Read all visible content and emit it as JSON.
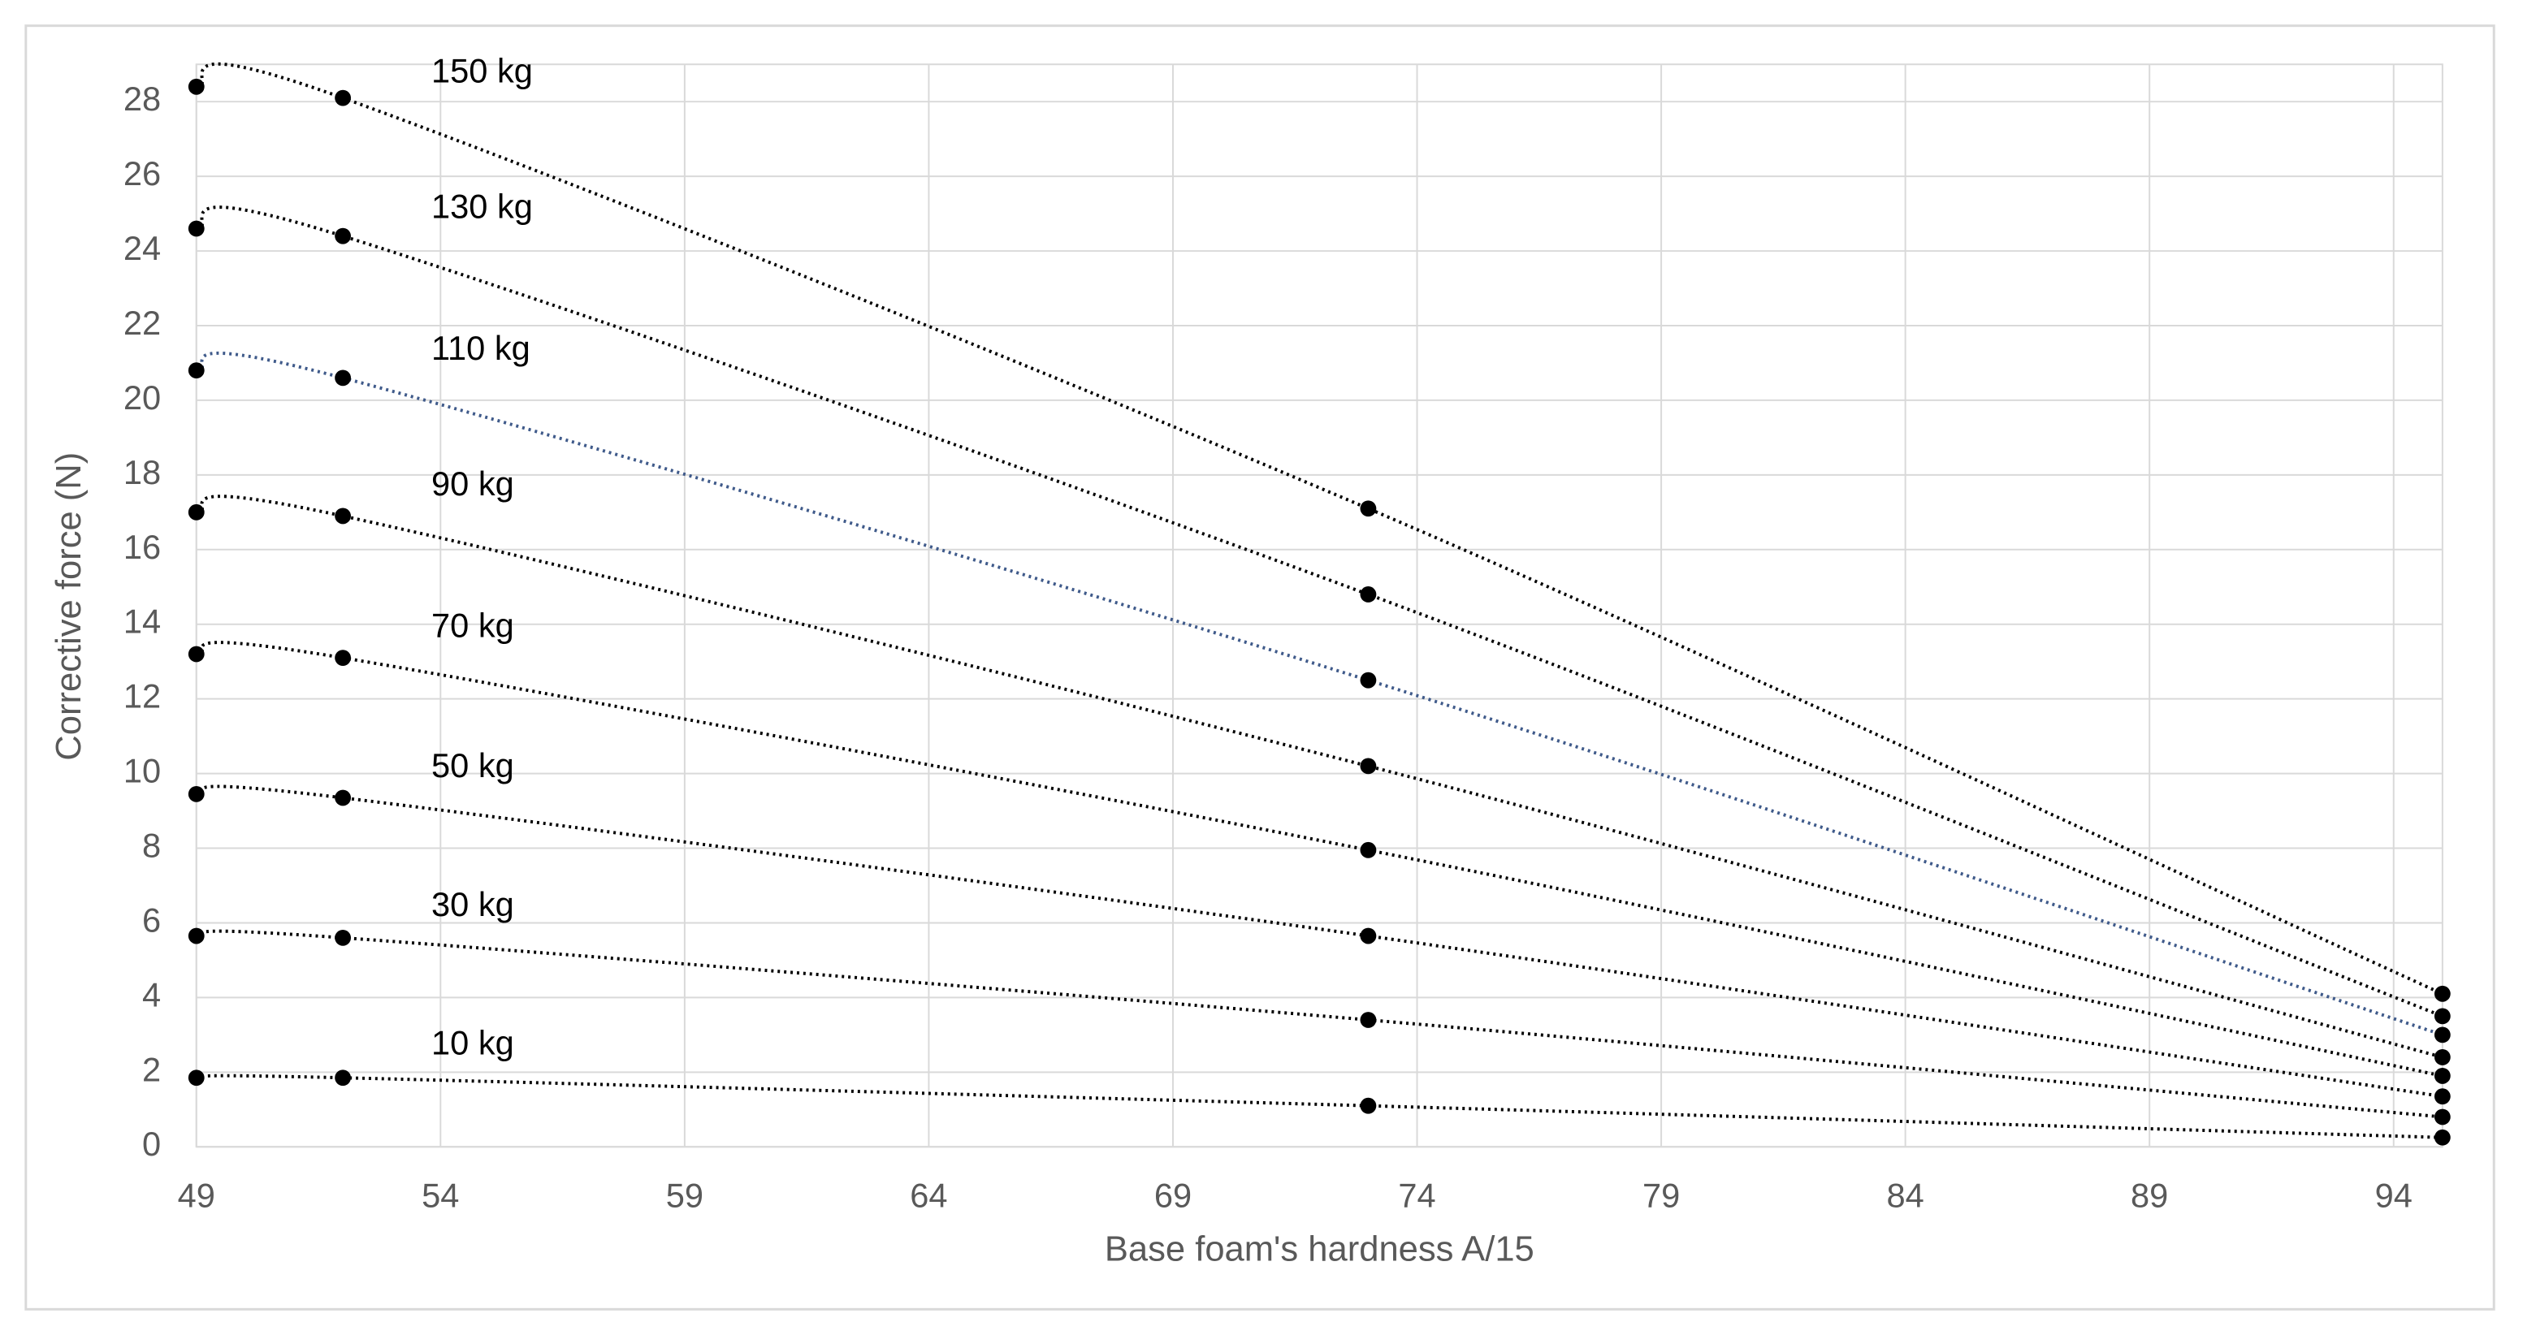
{
  "chart_data": {
    "type": "line",
    "x_label": "Base foam's hardness  A/15",
    "y_label": "Corrective force (N)",
    "x": [
      49,
      52,
      73,
      95
    ],
    "xlim": [
      49,
      95
    ],
    "xticks": [
      49,
      54,
      59,
      64,
      69,
      74,
      79,
      84,
      89,
      94
    ],
    "ylim": [
      0,
      29
    ],
    "yticks": [
      0,
      2,
      4,
      6,
      8,
      10,
      12,
      14,
      16,
      18,
      20,
      22,
      24,
      26,
      28
    ],
    "grid": true,
    "smooth": true,
    "series": [
      {
        "name": "150 kg",
        "color": "#000000",
        "values": [
          28.4,
          28.1,
          17.1,
          4.1
        ]
      },
      {
        "name": "130 kg",
        "color": "#000000",
        "values": [
          24.6,
          24.4,
          14.8,
          3.5
        ]
      },
      {
        "name": "110 kg",
        "color": "#3f5a8a",
        "values": [
          20.8,
          20.6,
          12.5,
          3.0
        ]
      },
      {
        "name": "90 kg",
        "color": "#000000",
        "values": [
          17.0,
          16.9,
          10.2,
          2.4
        ]
      },
      {
        "name": "70 kg",
        "color": "#000000",
        "values": [
          13.2,
          13.1,
          7.95,
          1.9
        ]
      },
      {
        "name": "50 kg",
        "color": "#000000",
        "values": [
          9.45,
          9.35,
          5.65,
          1.35
        ]
      },
      {
        "name": "30 kg",
        "color": "#000000",
        "values": [
          5.65,
          5.6,
          3.4,
          0.8
        ]
      },
      {
        "name": "10 kg",
        "color": "#000000",
        "values": [
          1.85,
          1.85,
          1.1,
          0.25
        ]
      }
    ]
  }
}
